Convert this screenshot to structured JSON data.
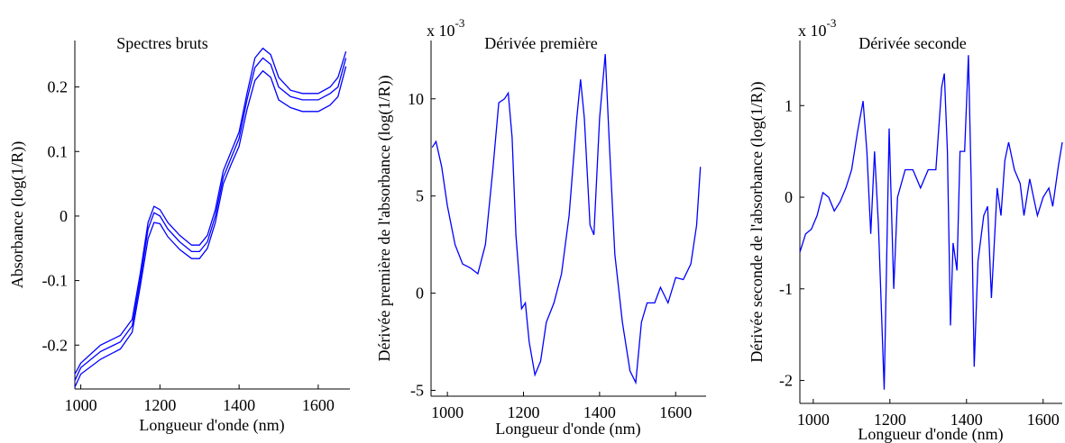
{
  "chart_data": [
    {
      "type": "line",
      "title": "Spectres bruts",
      "xlabel": "Longueur d'onde (nm)",
      "ylabel": "Absorbance (log(1/R))",
      "x": [
        985,
        1000,
        1050,
        1100,
        1130,
        1150,
        1170,
        1185,
        1200,
        1220,
        1250,
        1280,
        1300,
        1320,
        1340,
        1360,
        1380,
        1400,
        1420,
        1440,
        1460,
        1480,
        1500,
        1530,
        1560,
        1600,
        1630,
        1650,
        1670
      ],
      "series": [
        {
          "name": "s1",
          "color": "#0000ff",
          "values": [
            -0.245,
            -0.228,
            -0.2,
            -0.185,
            -0.16,
            -0.09,
            -0.01,
            0.015,
            0.01,
            -0.01,
            -0.03,
            -0.045,
            -0.045,
            -0.03,
            0.01,
            0.07,
            0.1,
            0.13,
            0.19,
            0.245,
            0.26,
            0.25,
            0.215,
            0.195,
            0.19,
            0.19,
            0.2,
            0.215,
            0.255
          ]
        },
        {
          "name": "s2",
          "color": "#0000ff",
          "values": [
            -0.255,
            -0.235,
            -0.21,
            -0.195,
            -0.17,
            -0.1,
            -0.02,
            0.005,
            0.0,
            -0.02,
            -0.04,
            -0.055,
            -0.055,
            -0.04,
            0.0,
            0.06,
            0.09,
            0.12,
            0.18,
            0.23,
            0.245,
            0.235,
            0.2,
            0.185,
            0.18,
            0.18,
            0.19,
            0.2,
            0.245
          ]
        },
        {
          "name": "s3",
          "color": "#0000ff",
          "values": [
            -0.265,
            -0.245,
            -0.222,
            -0.206,
            -0.18,
            -0.11,
            -0.035,
            -0.01,
            -0.012,
            -0.032,
            -0.052,
            -0.066,
            -0.066,
            -0.05,
            -0.01,
            0.05,
            0.08,
            0.108,
            0.165,
            0.21,
            0.225,
            0.215,
            0.18,
            0.168,
            0.162,
            0.162,
            0.172,
            0.185,
            0.232
          ]
        }
      ],
      "xlim": [
        985,
        1680
      ],
      "ylim": [
        -0.268,
        0.272
      ],
      "xticks": [
        1000,
        1200,
        1400,
        1600
      ],
      "yticks": [
        -0.2,
        -0.1,
        0,
        0.1,
        0.2
      ]
    },
    {
      "type": "line",
      "title": "Dérivée première",
      "multiplier": {
        "base": "x 10",
        "exponent": "-3"
      },
      "xlabel": "Longueur d'onde (nm)",
      "ylabel": "Dérivée première de l'absorbance (log(1/R))",
      "x": [
        960,
        970,
        985,
        1000,
        1020,
        1040,
        1060,
        1080,
        1100,
        1120,
        1135,
        1150,
        1160,
        1170,
        1180,
        1195,
        1205,
        1215,
        1230,
        1245,
        1260,
        1280,
        1300,
        1320,
        1340,
        1350,
        1360,
        1375,
        1385,
        1400,
        1415,
        1425,
        1440,
        1460,
        1480,
        1495,
        1510,
        1525,
        1545,
        1560,
        1580,
        1600,
        1620,
        1640,
        1655,
        1665
      ],
      "series": [
        {
          "name": "d1",
          "color": "#0000ff",
          "values": [
            7.5,
            7.8,
            6.5,
            4.5,
            2.5,
            1.5,
            1.3,
            1.0,
            2.5,
            6.5,
            9.8,
            10.0,
            10.3,
            8.0,
            3.0,
            -0.8,
            -0.5,
            -2.5,
            -4.2,
            -3.5,
            -1.5,
            -0.5,
            1.0,
            4.0,
            9.0,
            11.0,
            9.0,
            3.5,
            3.0,
            9.0,
            12.3,
            8.0,
            2.0,
            -1.5,
            -4.0,
            -4.6,
            -1.5,
            -0.5,
            -0.5,
            0.3,
            -0.5,
            0.8,
            0.7,
            1.5,
            3.5,
            6.5
          ]
        }
      ],
      "xlim": [
        957,
        1680
      ],
      "ylim": [
        -5.3,
        13
      ],
      "xticks": [
        1000,
        1200,
        1400,
        1600
      ],
      "yticks": [
        -5,
        0,
        5,
        10
      ]
    },
    {
      "type": "line",
      "title": "Dérivée seconde",
      "multiplier": {
        "base": "x 10",
        "exponent": "-3"
      },
      "xlabel": "Longueur d'onde (nm)",
      "ylabel": "Dérivée seconde de l'absorbance (log(1/R))",
      "x": [
        965,
        980,
        995,
        1010,
        1025,
        1040,
        1055,
        1070,
        1085,
        1100,
        1115,
        1130,
        1140,
        1150,
        1160,
        1170,
        1185,
        1198,
        1210,
        1220,
        1240,
        1260,
        1280,
        1300,
        1320,
        1335,
        1342,
        1350,
        1358,
        1365,
        1375,
        1383,
        1395,
        1405,
        1412,
        1420,
        1430,
        1445,
        1455,
        1465,
        1480,
        1490,
        1500,
        1510,
        1525,
        1540,
        1550,
        1565,
        1575,
        1585,
        1600,
        1615,
        1625,
        1640,
        1650
      ],
      "series": [
        {
          "name": "d2",
          "color": "#0000ff",
          "values": [
            -0.6,
            -0.4,
            -0.35,
            -0.2,
            0.05,
            0.0,
            -0.15,
            -0.05,
            0.1,
            0.3,
            0.7,
            1.05,
            0.5,
            -0.4,
            0.5,
            -0.3,
            -2.1,
            0.75,
            -1.0,
            0.0,
            0.3,
            0.3,
            0.1,
            0.3,
            0.3,
            1.2,
            1.35,
            0.5,
            -1.4,
            -0.5,
            -0.8,
            0.5,
            0.5,
            1.55,
            0.2,
            -1.85,
            -0.7,
            -0.2,
            -0.1,
            -1.1,
            0.1,
            -0.2,
            0.4,
            0.6,
            0.3,
            0.15,
            -0.2,
            0.2,
            0.0,
            -0.2,
            0.0,
            0.1,
            -0.1,
            0.35,
            0.6
          ]
        }
      ],
      "xlim": [
        965,
        1650
      ],
      "ylim": [
        -2.25,
        1.71
      ],
      "xticks": [
        1000,
        1200,
        1400,
        1600
      ],
      "yticks": [
        -2,
        -1,
        0,
        1
      ]
    }
  ]
}
